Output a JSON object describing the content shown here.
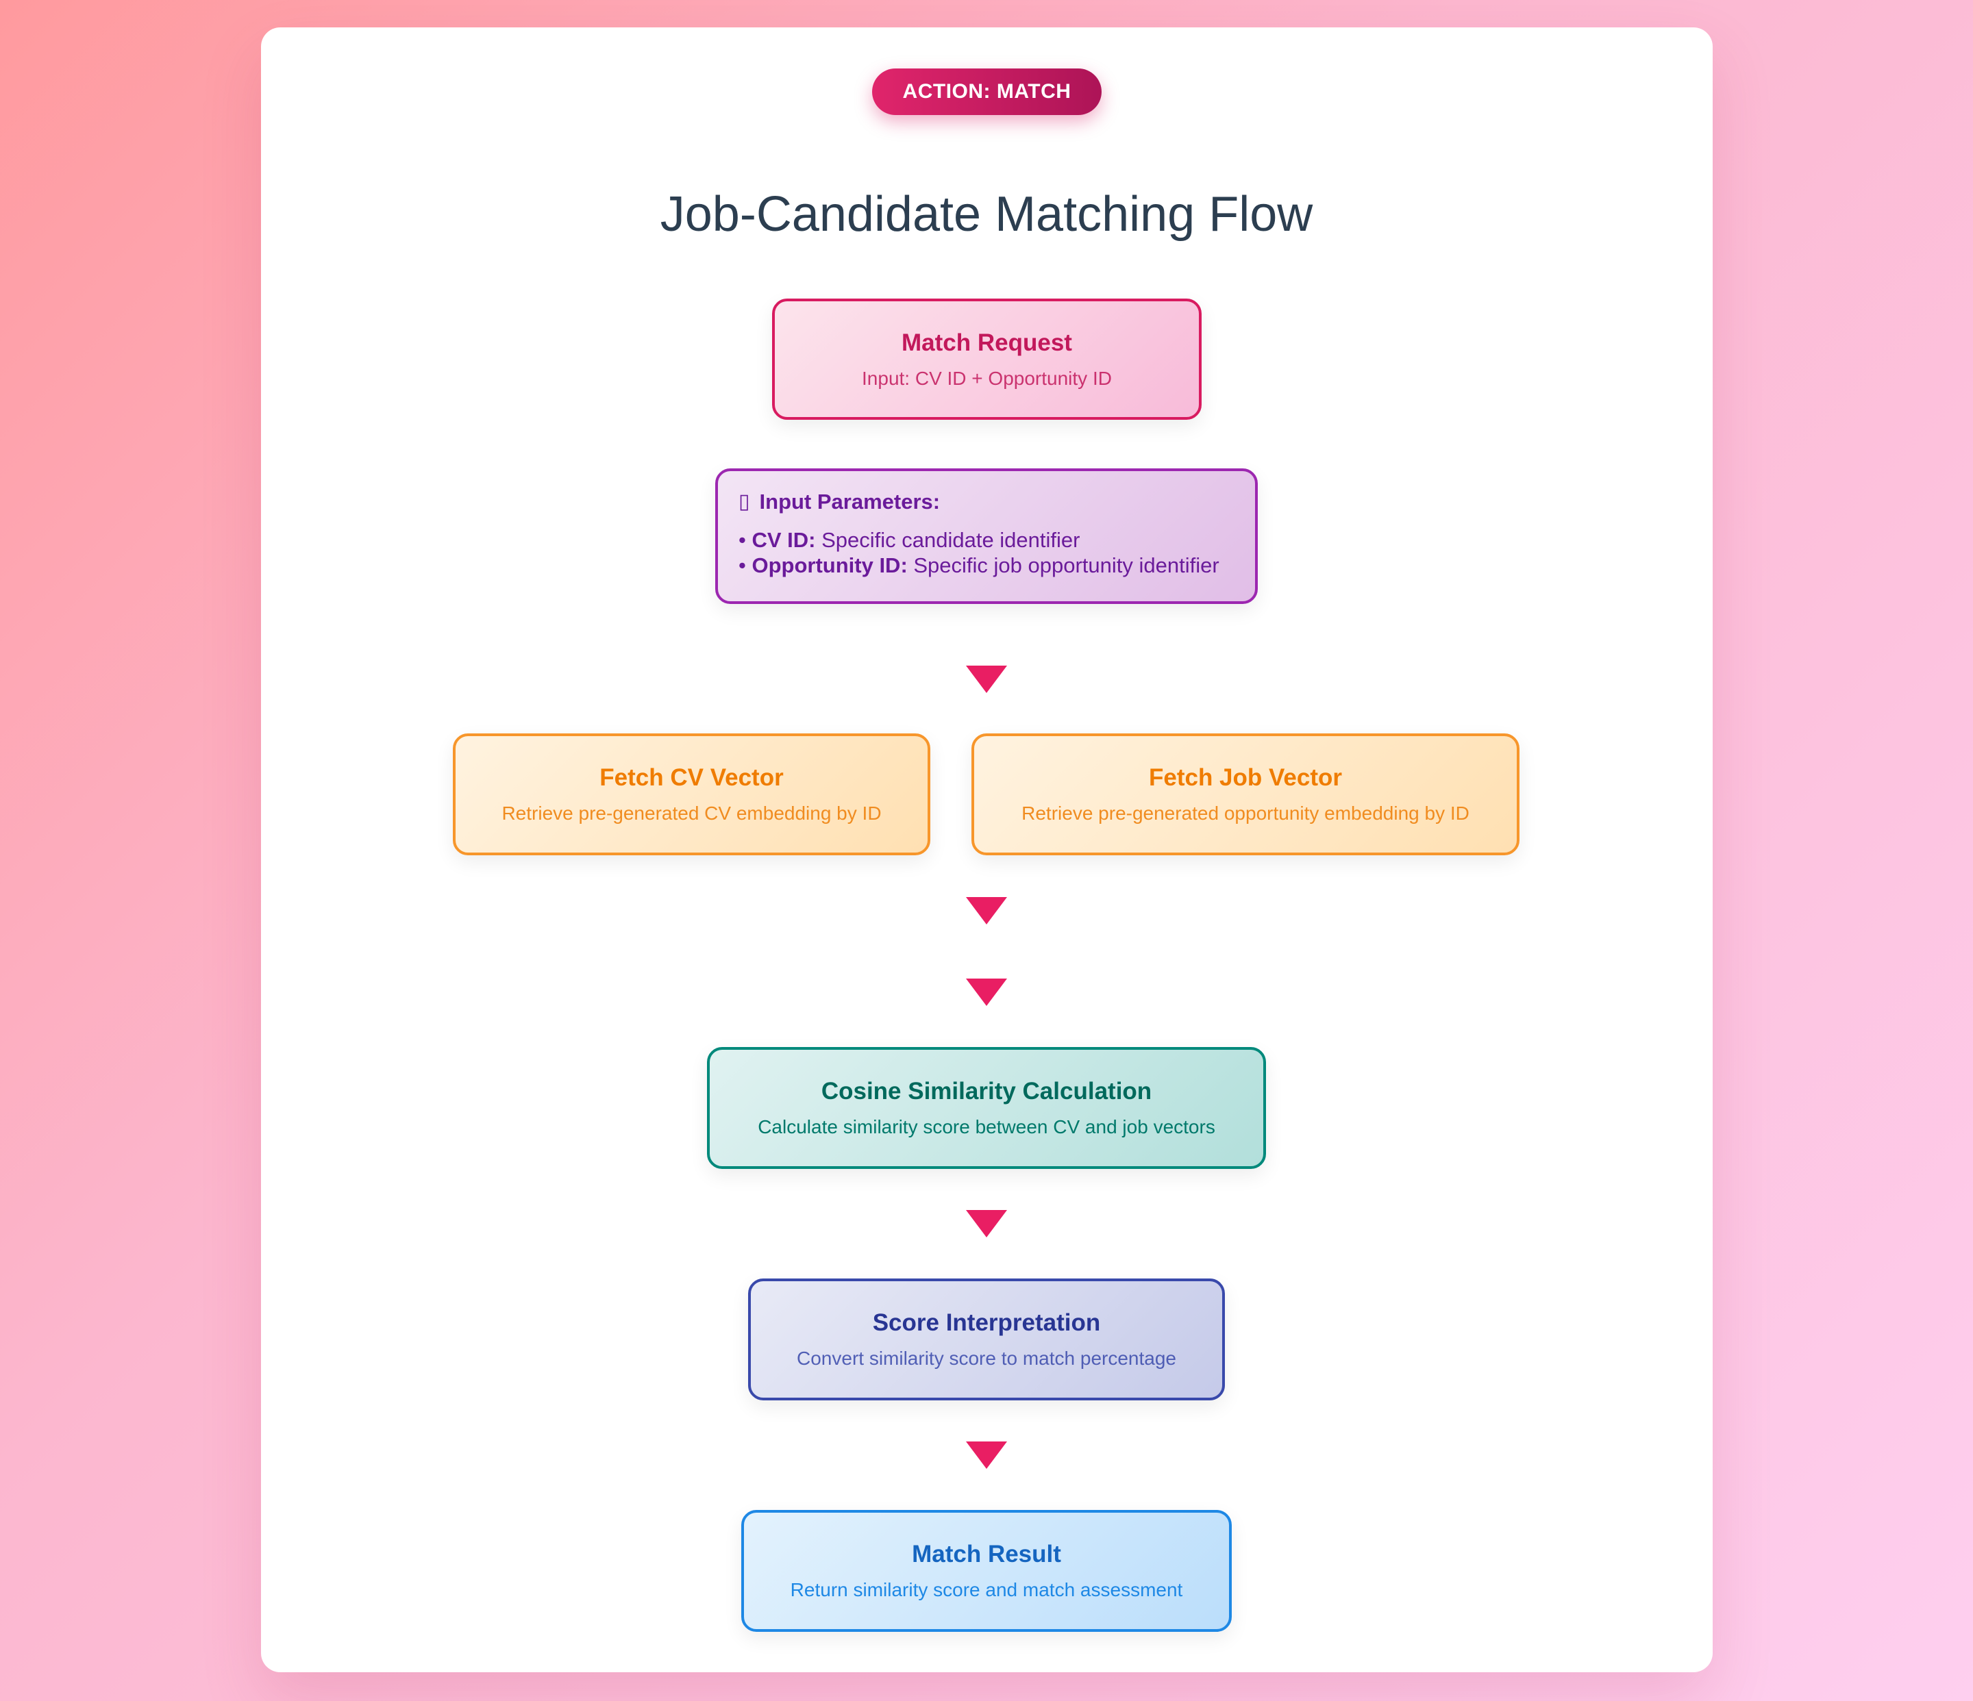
{
  "badge": "ACTION: MATCH",
  "title": "Job-Candidate Matching Flow",
  "match_request": {
    "title": "Match Request",
    "subtitle": "Input: CV ID + Opportunity ID"
  },
  "input_parameters": {
    "icon": "clipboard-icon",
    "heading": "Input Parameters:",
    "items": [
      {
        "bullet": "• ",
        "key": "CV ID:",
        "value": " Specific candidate identifier"
      },
      {
        "bullet": "• ",
        "key": "Opportunity ID:",
        "value": " Specific job opportunity identifier"
      }
    ]
  },
  "fetch_cv": {
    "title": "Fetch CV Vector",
    "subtitle": "Retrieve pre-generated CV embedding by ID"
  },
  "fetch_job": {
    "title": "Fetch Job Vector",
    "subtitle": "Retrieve pre-generated opportunity embedding by ID"
  },
  "cosine": {
    "title": "Cosine Similarity Calculation",
    "subtitle": "Calculate similarity score between CV and job vectors"
  },
  "score": {
    "title": "Score Interpretation",
    "subtitle": "Convert similarity score to match percentage"
  },
  "result": {
    "title": "Match Result",
    "subtitle": "Return similarity score and match assessment"
  },
  "colors": {
    "accent": "#e91e63",
    "title_text": "#2c3e50"
  }
}
